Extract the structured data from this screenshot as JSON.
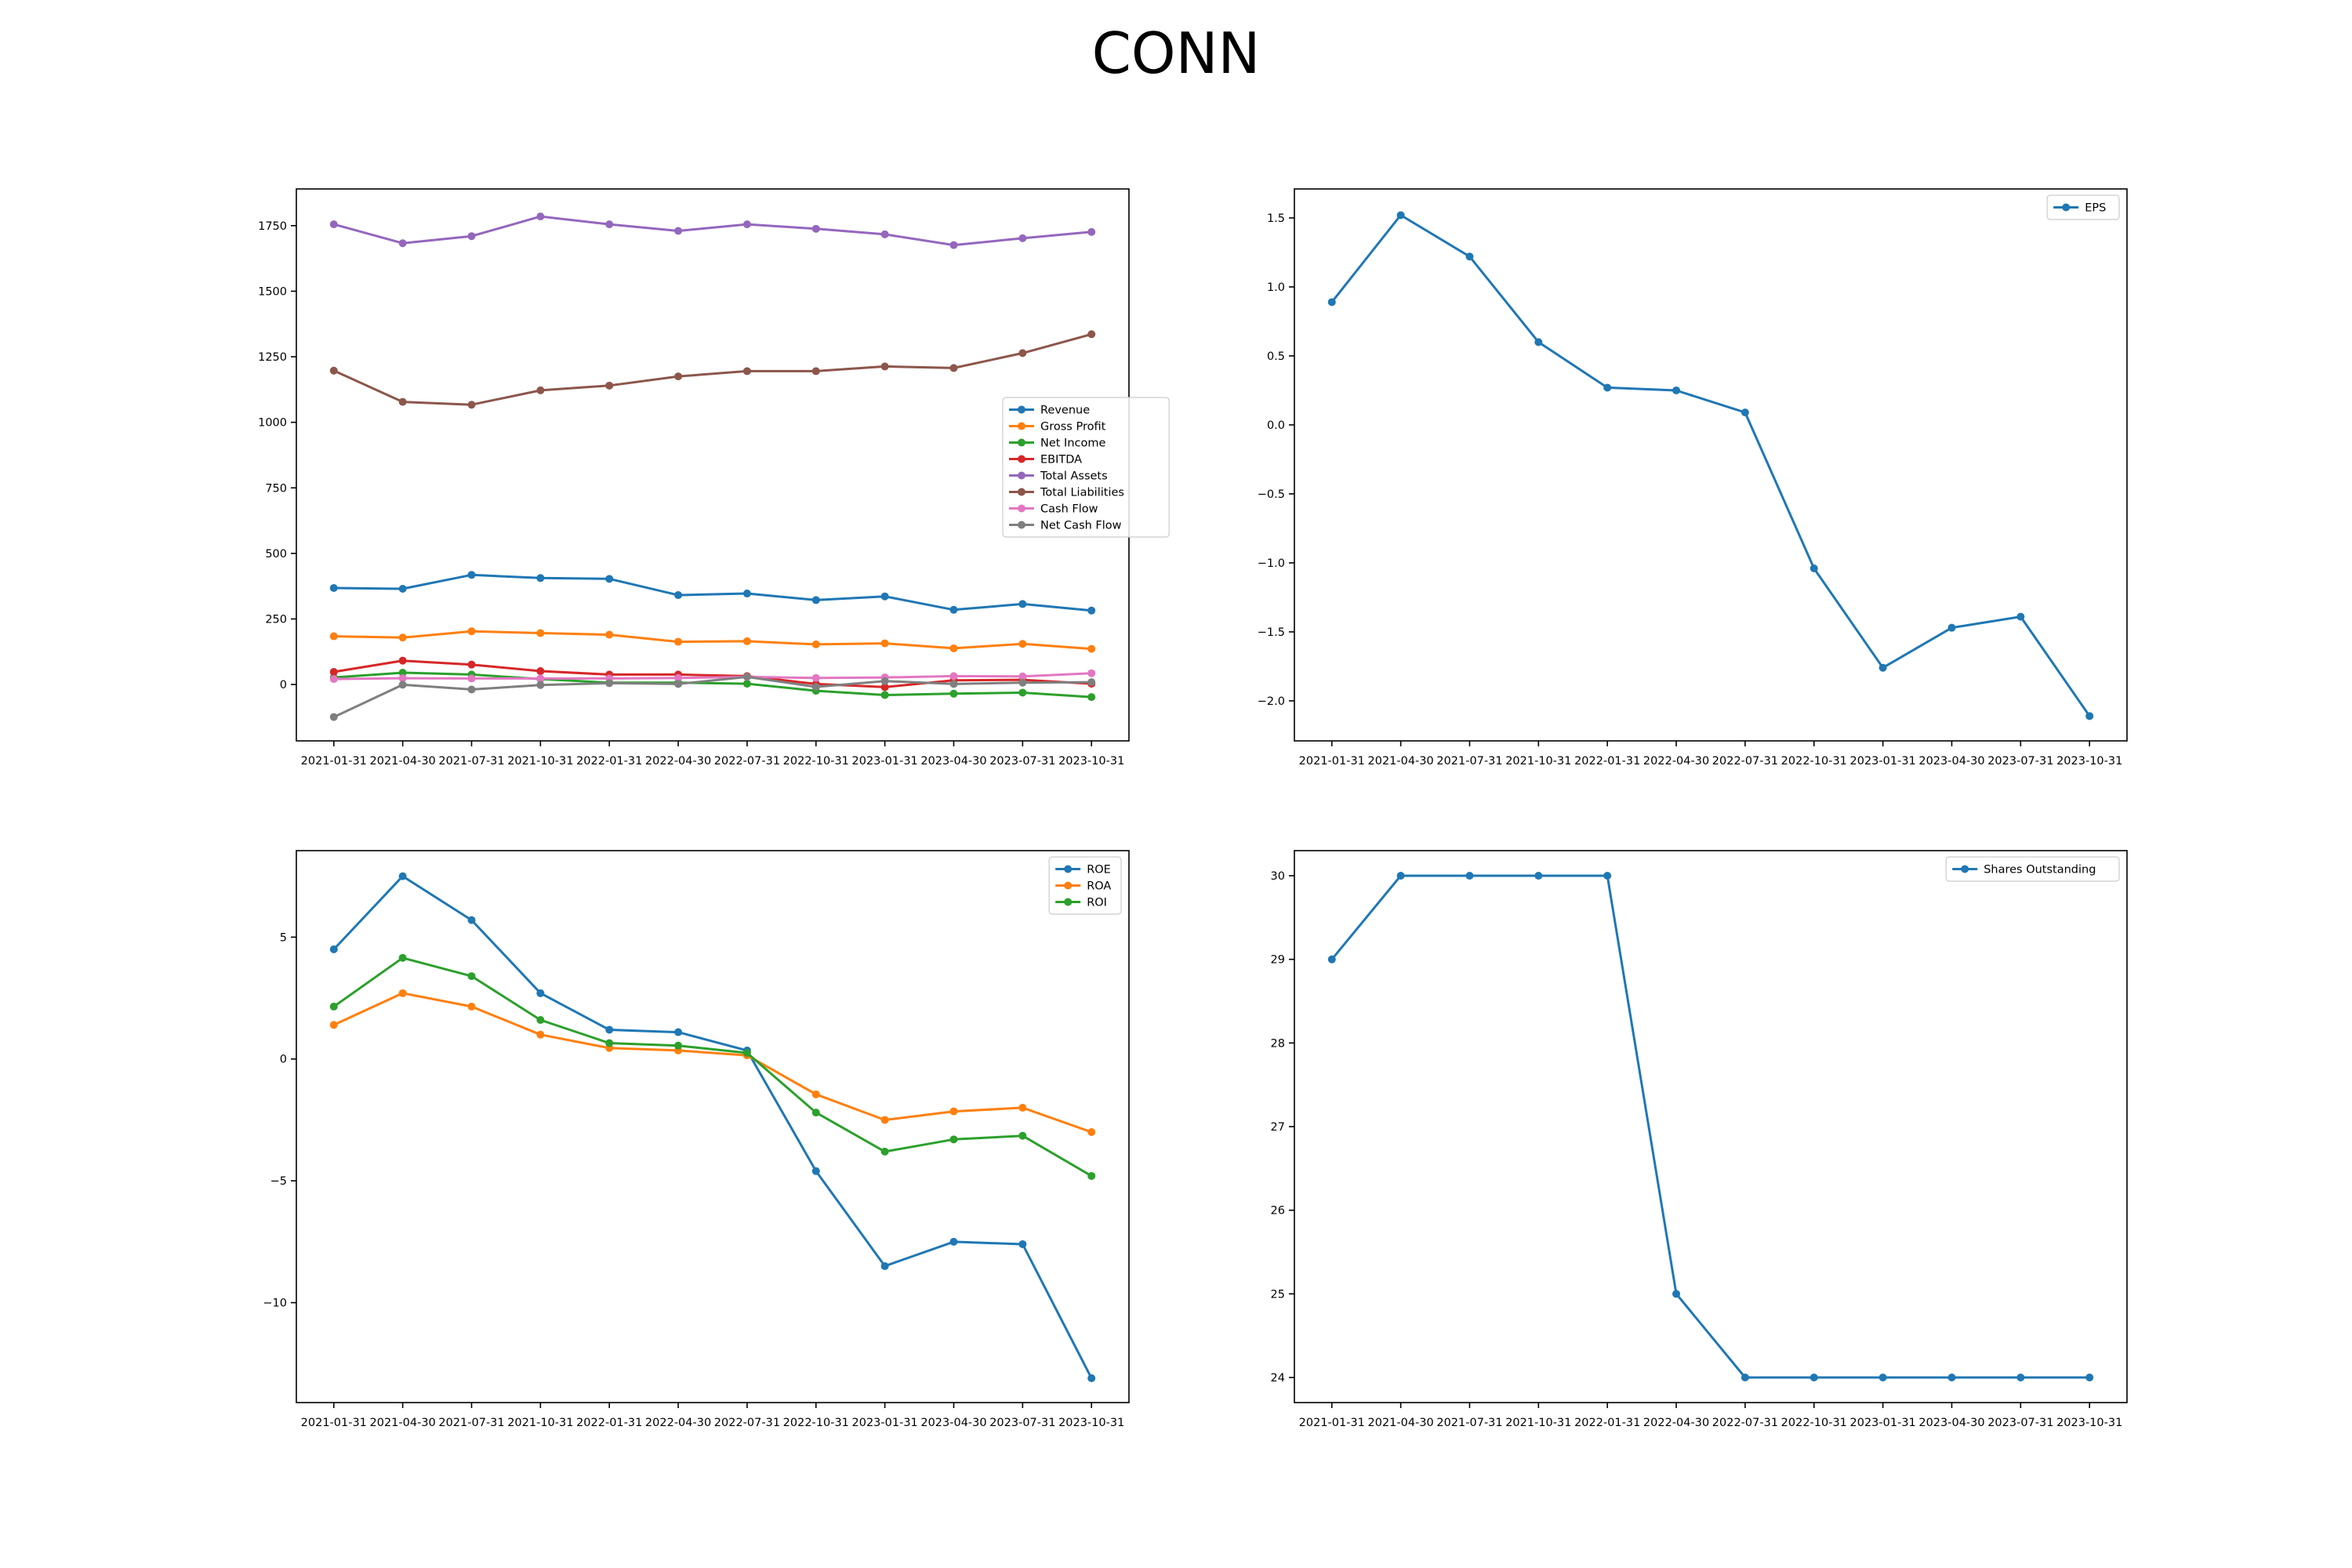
{
  "suptitle": "CONN",
  "chart_data": [
    {
      "type": "line",
      "x": [
        "2021-01-31",
        "2021-04-30",
        "2021-07-31",
        "2021-10-31",
        "2022-01-31",
        "2022-04-30",
        "2022-07-31",
        "2022-10-31",
        "2023-01-31",
        "2023-04-30",
        "2023-07-31",
        "2023-10-31"
      ],
      "ylim": [
        -215,
        1890
      ],
      "yticks": [
        0,
        250,
        500,
        750,
        1000,
        1250,
        1500,
        1750
      ],
      "legend": "center-right",
      "grid": false,
      "series": [
        {
          "name": "Revenue",
          "color": "#1f77b4",
          "values": [
            368,
            365,
            418,
            406,
            403,
            341,
            347,
            322,
            336,
            285,
            307,
            282
          ]
        },
        {
          "name": "Gross Profit",
          "color": "#ff7f0e",
          "values": [
            184,
            179,
            203,
            196,
            190,
            163,
            165,
            153,
            157,
            138,
            155,
            136
          ]
        },
        {
          "name": "Net Income",
          "color": "#2ca02c",
          "values": [
            27,
            45,
            38,
            21,
            7,
            7,
            3,
            -24,
            -40,
            -35,
            -31,
            -48
          ]
        },
        {
          "name": "EBITDA",
          "color": "#d62728",
          "values": [
            48,
            91,
            76,
            51,
            38,
            38,
            32,
            2,
            -10,
            16,
            18,
            3
          ]
        },
        {
          "name": "Total Assets",
          "color": "#9467bd",
          "values": [
            1755,
            1683,
            1710,
            1785,
            1755,
            1730,
            1755,
            1738,
            1717,
            1676,
            1702,
            1726
          ]
        },
        {
          "name": "Total Liabilities",
          "color": "#8c564b",
          "values": [
            1197,
            1078,
            1067,
            1122,
            1140,
            1175,
            1195,
            1195,
            1213,
            1207,
            1264,
            1336
          ]
        },
        {
          "name": "Cash Flow",
          "color": "#e377c2",
          "values": [
            21,
            24,
            23,
            23,
            23,
            25,
            29,
            25,
            27,
            32,
            31,
            43
          ]
        },
        {
          "name": "Net Cash Flow",
          "color": "#7f7f7f",
          "values": [
            -124,
            -1,
            -19,
            -2,
            5,
            2,
            29,
            -9,
            13,
            2,
            7,
            9
          ]
        }
      ]
    },
    {
      "type": "line",
      "x": [
        "2021-01-31",
        "2021-04-30",
        "2021-07-31",
        "2021-10-31",
        "2022-01-31",
        "2022-04-30",
        "2022-07-31",
        "2022-10-31",
        "2023-01-31",
        "2023-04-30",
        "2023-07-31",
        "2023-10-31"
      ],
      "ylim": [
        -2.29,
        1.71
      ],
      "yticks": [
        -2.0,
        -1.5,
        -1.0,
        -0.5,
        0.0,
        0.5,
        1.0,
        1.5
      ],
      "legend": "upper-right",
      "grid": false,
      "series": [
        {
          "name": "EPS",
          "color": "#1f77b4",
          "values": [
            0.89,
            1.52,
            1.22,
            0.6,
            0.27,
            0.25,
            0.09,
            -1.04,
            -1.76,
            -1.47,
            -1.39,
            -2.11
          ]
        }
      ]
    },
    {
      "type": "line",
      "x": [
        "2021-01-31",
        "2021-04-30",
        "2021-07-31",
        "2021-10-31",
        "2022-01-31",
        "2022-04-30",
        "2022-07-31",
        "2022-10-31",
        "2023-01-31",
        "2023-04-30",
        "2023-07-31",
        "2023-10-31"
      ],
      "ylim": [
        -14.1,
        8.55
      ],
      "yticks": [
        -10,
        -5,
        0,
        5
      ],
      "legend": "upper-right",
      "grid": false,
      "series": [
        {
          "name": "ROE",
          "color": "#1f77b4",
          "values": [
            4.5,
            7.5,
            5.7,
            2.7,
            1.2,
            1.1,
            0.35,
            -4.6,
            -8.5,
            -7.5,
            -7.6,
            -13.1
          ]
        },
        {
          "name": "ROA",
          "color": "#ff7f0e",
          "values": [
            1.4,
            2.7,
            2.15,
            1.0,
            0.45,
            0.35,
            0.15,
            -1.45,
            -2.5,
            -2.15,
            -2.0,
            -3.0
          ]
        },
        {
          "name": "ROI",
          "color": "#2ca02c",
          "values": [
            2.15,
            4.15,
            3.4,
            1.6,
            0.65,
            0.55,
            0.25,
            -2.2,
            -3.8,
            -3.3,
            -3.15,
            -4.8
          ]
        }
      ]
    },
    {
      "type": "line",
      "x": [
        "2021-01-31",
        "2021-04-30",
        "2021-07-31",
        "2021-10-31",
        "2022-01-31",
        "2022-04-30",
        "2022-07-31",
        "2022-10-31",
        "2023-01-31",
        "2023-04-30",
        "2023-07-31",
        "2023-10-31"
      ],
      "ylim": [
        23.7,
        30.3
      ],
      "yticks": [
        24,
        25,
        26,
        27,
        28,
        29,
        30
      ],
      "legend": "upper-right",
      "grid": false,
      "series": [
        {
          "name": "Shares Outstanding",
          "color": "#1f77b4",
          "values": [
            29,
            30,
            30,
            30,
            30,
            25,
            24,
            24,
            24,
            24,
            24,
            24
          ]
        }
      ]
    }
  ]
}
